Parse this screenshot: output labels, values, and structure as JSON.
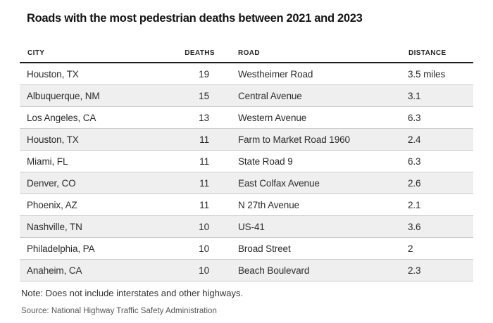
{
  "title": "Roads with the most pedestrian deaths between 2021 and 2023",
  "table": {
    "headers": [
      "CITY",
      "DEATHS",
      "ROAD",
      "DISTANCE"
    ],
    "rows": [
      {
        "city": "Houston, TX",
        "deaths": "19",
        "road": "Westheimer Road",
        "distance": "3.5 miles"
      },
      {
        "city": "Albuquerque, NM",
        "deaths": "15",
        "road": "Central Avenue",
        "distance": "3.1"
      },
      {
        "city": "Los Angeles, CA",
        "deaths": "13",
        "road": "Western Avenue",
        "distance": "6.3"
      },
      {
        "city": "Houston, TX",
        "deaths": "11",
        "road": "Farm to Market Road 1960",
        "distance": "2.4"
      },
      {
        "city": "Miami, FL",
        "deaths": "11",
        "road": "State Road 9",
        "distance": "6.3"
      },
      {
        "city": "Denver, CO",
        "deaths": "11",
        "road": "East Colfax Avenue",
        "distance": "2.6"
      },
      {
        "city": "Phoenix, AZ",
        "deaths": "11",
        "road": "N 27th Avenue",
        "distance": "2.1"
      },
      {
        "city": "Nashville, TN",
        "deaths": "10",
        "road": "US-41",
        "distance": "3.6"
      },
      {
        "city": "Philadelphia, PA",
        "deaths": "10",
        "road": "Broad Street",
        "distance": "2"
      },
      {
        "city": "Anaheim, CA",
        "deaths": "10",
        "road": "Beach Boulevard",
        "distance": "2.3"
      }
    ]
  },
  "note": "Note: Does not include interstates and other highways.",
  "source": "Source: National Highway Traffic Safety Administration",
  "colors": {
    "background": "#ffffff",
    "title_text": "#141414",
    "header_text": "#222222",
    "header_rule": "#1c1c1c",
    "cell_text": "#2b2b2b",
    "row_stripe": "#efefef",
    "row_divider": "#cbcbcb",
    "note_text": "#333333",
    "source_text": "#565656"
  },
  "chart_data": {
    "type": "table",
    "title": "Roads with the most pedestrian deaths between 2021 and 2023",
    "columns": [
      "CITY",
      "DEATHS",
      "ROAD",
      "DISTANCE"
    ],
    "rows": [
      [
        "Houston, TX",
        19,
        "Westheimer Road",
        "3.5 miles"
      ],
      [
        "Albuquerque, NM",
        15,
        "Central Avenue",
        "3.1"
      ],
      [
        "Los Angeles, CA",
        13,
        "Western Avenue",
        "6.3"
      ],
      [
        "Houston, TX",
        11,
        "Farm to Market Road 1960",
        "2.4"
      ],
      [
        "Miami, FL",
        11,
        "State Road 9",
        "6.3"
      ],
      [
        "Denver, CO",
        11,
        "East Colfax Avenue",
        "2.6"
      ],
      [
        "Phoenix, AZ",
        11,
        "N 27th Avenue",
        "2.1"
      ],
      [
        "Nashville, TN",
        10,
        "US-41",
        "3.6"
      ],
      [
        "Philadelphia, PA",
        10,
        "Broad Street",
        "2"
      ],
      [
        "Anaheim, CA",
        10,
        "Beach Boulevard",
        "2.3"
      ]
    ],
    "note": "Note: Does not include interstates and other highways.",
    "source": "Source: National Highway Traffic Safety Administration",
    "layout": {
      "zebra_stripes": true,
      "distance_unit_shown_first_row_only": "miles"
    }
  }
}
